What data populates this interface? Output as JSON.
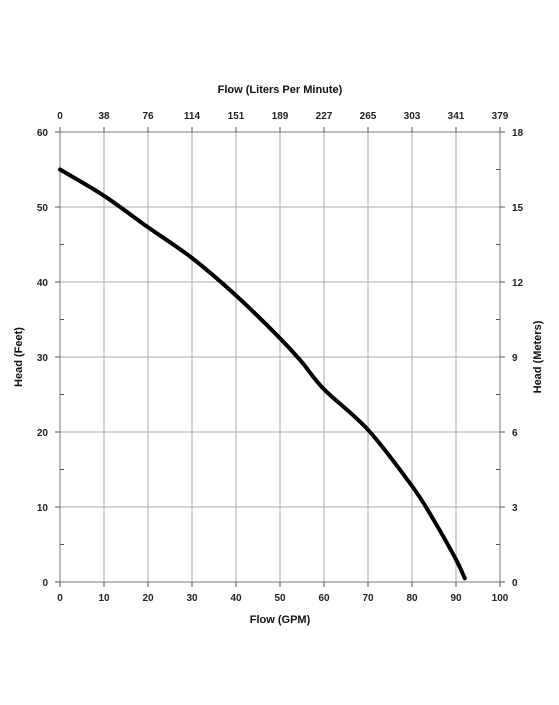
{
  "chart_data": {
    "type": "line",
    "title": "",
    "xlabel": "Flow (GPM)",
    "ylabel": "Head (Feet)",
    "x2label": "Flow (Liters Per Minute)",
    "y2label": "Head (Meters)",
    "xlim": [
      0,
      100
    ],
    "ylim": [
      0,
      60
    ],
    "x_ticks": [
      0,
      10,
      20,
      30,
      40,
      50,
      60,
      70,
      80,
      90,
      100
    ],
    "y_ticks": [
      0,
      10,
      20,
      30,
      40,
      50,
      60
    ],
    "x2_tick_labels": [
      "0",
      "38",
      "76",
      "114",
      "151",
      "189",
      "227",
      "265",
      "303",
      "341",
      "379"
    ],
    "y2_tick_labels": [
      "0",
      "3",
      "6",
      "9",
      "12",
      "15",
      "18"
    ],
    "grid": true,
    "legend": "none",
    "line_color": "#000000",
    "series": [
      {
        "x": [
          0,
          10,
          20,
          30,
          40,
          50,
          55,
          60,
          70,
          80,
          85,
          90,
          92
        ],
        "y": [
          55,
          51.5,
          47.3,
          43.2,
          38.2,
          32.5,
          29.3,
          25.7,
          20.3,
          12.8,
          8.2,
          3.0,
          0.5
        ]
      }
    ]
  }
}
